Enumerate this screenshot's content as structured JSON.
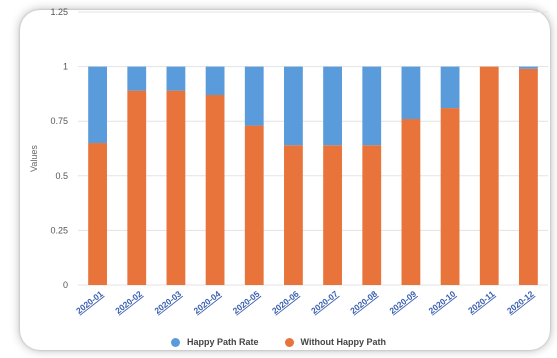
{
  "chart_data": {
    "type": "bar",
    "stacked": true,
    "title": "",
    "xlabel": "",
    "ylabel": "Values",
    "ylim": [
      0,
      1.25
    ],
    "yticks": [
      {
        "value": 0,
        "label": "0"
      },
      {
        "value": 0.25,
        "label": "0.25"
      },
      {
        "value": 0.5,
        "label": "0.5"
      },
      {
        "value": 0.75,
        "label": "0.75"
      },
      {
        "value": 1,
        "label": "1"
      },
      {
        "value": 1.25,
        "label": "1.25"
      }
    ],
    "grid": true,
    "legend_position": "bottom",
    "categories": [
      "2020-01",
      "2020-02",
      "2020-03",
      "2020-04",
      "2020-05",
      "2020-06",
      "2020-07",
      "2020-08",
      "2020-09",
      "2020-10",
      "2020-11",
      "2020-12"
    ],
    "series": [
      {
        "name": "Without Happy Path",
        "color": "#e8743b",
        "values": [
          0.65,
          0.89,
          0.89,
          0.87,
          0.73,
          0.64,
          0.64,
          0.64,
          0.76,
          0.81,
          1.0,
          0.99
        ]
      },
      {
        "name": "Happy Path Rate",
        "color": "#5a9bdc",
        "values": [
          0.35,
          0.11,
          0.11,
          0.13,
          0.27,
          0.36,
          0.36,
          0.36,
          0.24,
          0.19,
          0.0,
          0.01
        ]
      }
    ],
    "legend": [
      {
        "label": "Happy Path Rate",
        "color": "#5a9bdc"
      },
      {
        "label": "Without Happy Path",
        "color": "#e8743b"
      }
    ]
  }
}
